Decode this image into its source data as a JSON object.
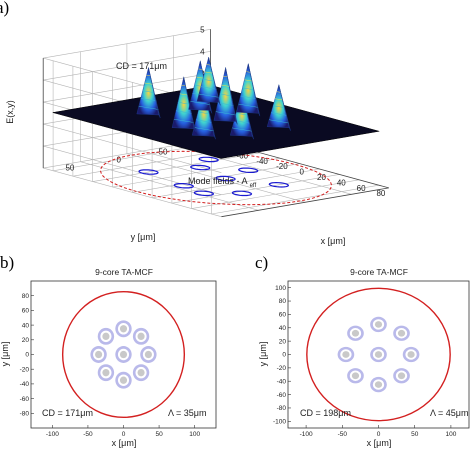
{
  "panel_letters": {
    "a": "a)",
    "b": "b)",
    "c": "c)"
  },
  "colors": {
    "fiber_boundary": "#d32020",
    "mode_ring": "#1a1ad0",
    "core": "#c9c9c9",
    "cladding_ring": "#b9b9ea",
    "surface_base": "#0a0a22"
  },
  "chart_data": [
    {
      "id": "a",
      "type": "surface3d",
      "ylabel_vertical": "E(x,y)",
      "xlabel": "x [μm]",
      "ylabel": "y [μm]",
      "zticks": [
        "0",
        "1",
        "2",
        "3",
        "4",
        "5"
      ],
      "xticks": [
        "-80",
        "-60",
        "-40",
        "-20",
        "0",
        "20",
        "40",
        "60",
        "80"
      ],
      "yticks": [
        "50",
        "0",
        "-50"
      ],
      "zlim": [
        0,
        5
      ],
      "annotations": {
        "cd": "CD = 171μm",
        "mode_fields": "Mode fields - A",
        "mode_fields_sub": "eff"
      },
      "peaks": [
        {
          "x": -40,
          "y": 30,
          "z": 3.2
        },
        {
          "x": 5,
          "y": 40,
          "z": 3.4
        },
        {
          "x": 45,
          "y": 20,
          "z": 3.1
        },
        {
          "x": -30,
          "y": -15,
          "z": 3.3
        },
        {
          "x": 5,
          "y": -5,
          "z": 3.5
        },
        {
          "x": 40,
          "y": -25,
          "z": 3.0
        },
        {
          "x": -5,
          "y": -40,
          "z": 3.3
        },
        {
          "x": -45,
          "y": -40,
          "z": 3.1
        },
        {
          "x": 30,
          "y": 45,
          "z": 3.2
        }
      ],
      "grid": true
    },
    {
      "id": "b",
      "type": "scatter",
      "title": "9-core TA-MCF",
      "xlabel": "x [μm]",
      "ylabel": "y [μm]",
      "xlim": [
        -130,
        130
      ],
      "ylim": [
        -100,
        100
      ],
      "xticks": [
        "-100",
        "-50",
        "0",
        "50",
        "100"
      ],
      "yticks": [
        "80",
        "60",
        "40",
        "20",
        "0",
        "-20",
        "-40",
        "-60",
        "-80"
      ],
      "cladding_radius": 85.5,
      "cores": [
        {
          "x": 0,
          "y": 0
        },
        {
          "x": 0,
          "y": 35
        },
        {
          "x": 0,
          "y": -35
        },
        {
          "x": 35,
          "y": 0
        },
        {
          "x": -35,
          "y": 0
        },
        {
          "x": 24.7,
          "y": 24.7
        },
        {
          "x": -24.7,
          "y": 24.7
        },
        {
          "x": 24.7,
          "y": -24.7
        },
        {
          "x": -24.7,
          "y": -24.7
        }
      ],
      "annotations": {
        "cd": "CD = 171μm",
        "pitch": "Λ = 35μm"
      }
    },
    {
      "id": "c",
      "type": "scatter",
      "title": "9-core TA-MCF",
      "xlabel": "x [μm]",
      "ylabel": "y [μm]",
      "xlim": [
        -125,
        125
      ],
      "ylim": [
        -110,
        110
      ],
      "xticks": [
        "-100",
        "-50",
        "0",
        "50",
        "100"
      ],
      "yticks": [
        "100",
        "80",
        "60",
        "40",
        "20",
        "0",
        "-20",
        "-40",
        "-60",
        "-80",
        "-100"
      ],
      "cladding_radius": 99,
      "cores": [
        {
          "x": 0,
          "y": 0
        },
        {
          "x": 0,
          "y": 45
        },
        {
          "x": 0,
          "y": -45
        },
        {
          "x": 45,
          "y": 0
        },
        {
          "x": -45,
          "y": 0
        },
        {
          "x": 31.8,
          "y": 31.8
        },
        {
          "x": -31.8,
          "y": 31.8
        },
        {
          "x": 31.8,
          "y": -31.8
        },
        {
          "x": -31.8,
          "y": -31.8
        }
      ],
      "annotations": {
        "cd": "CD = 198μm",
        "pitch": "Λ = 45μm"
      }
    }
  ]
}
